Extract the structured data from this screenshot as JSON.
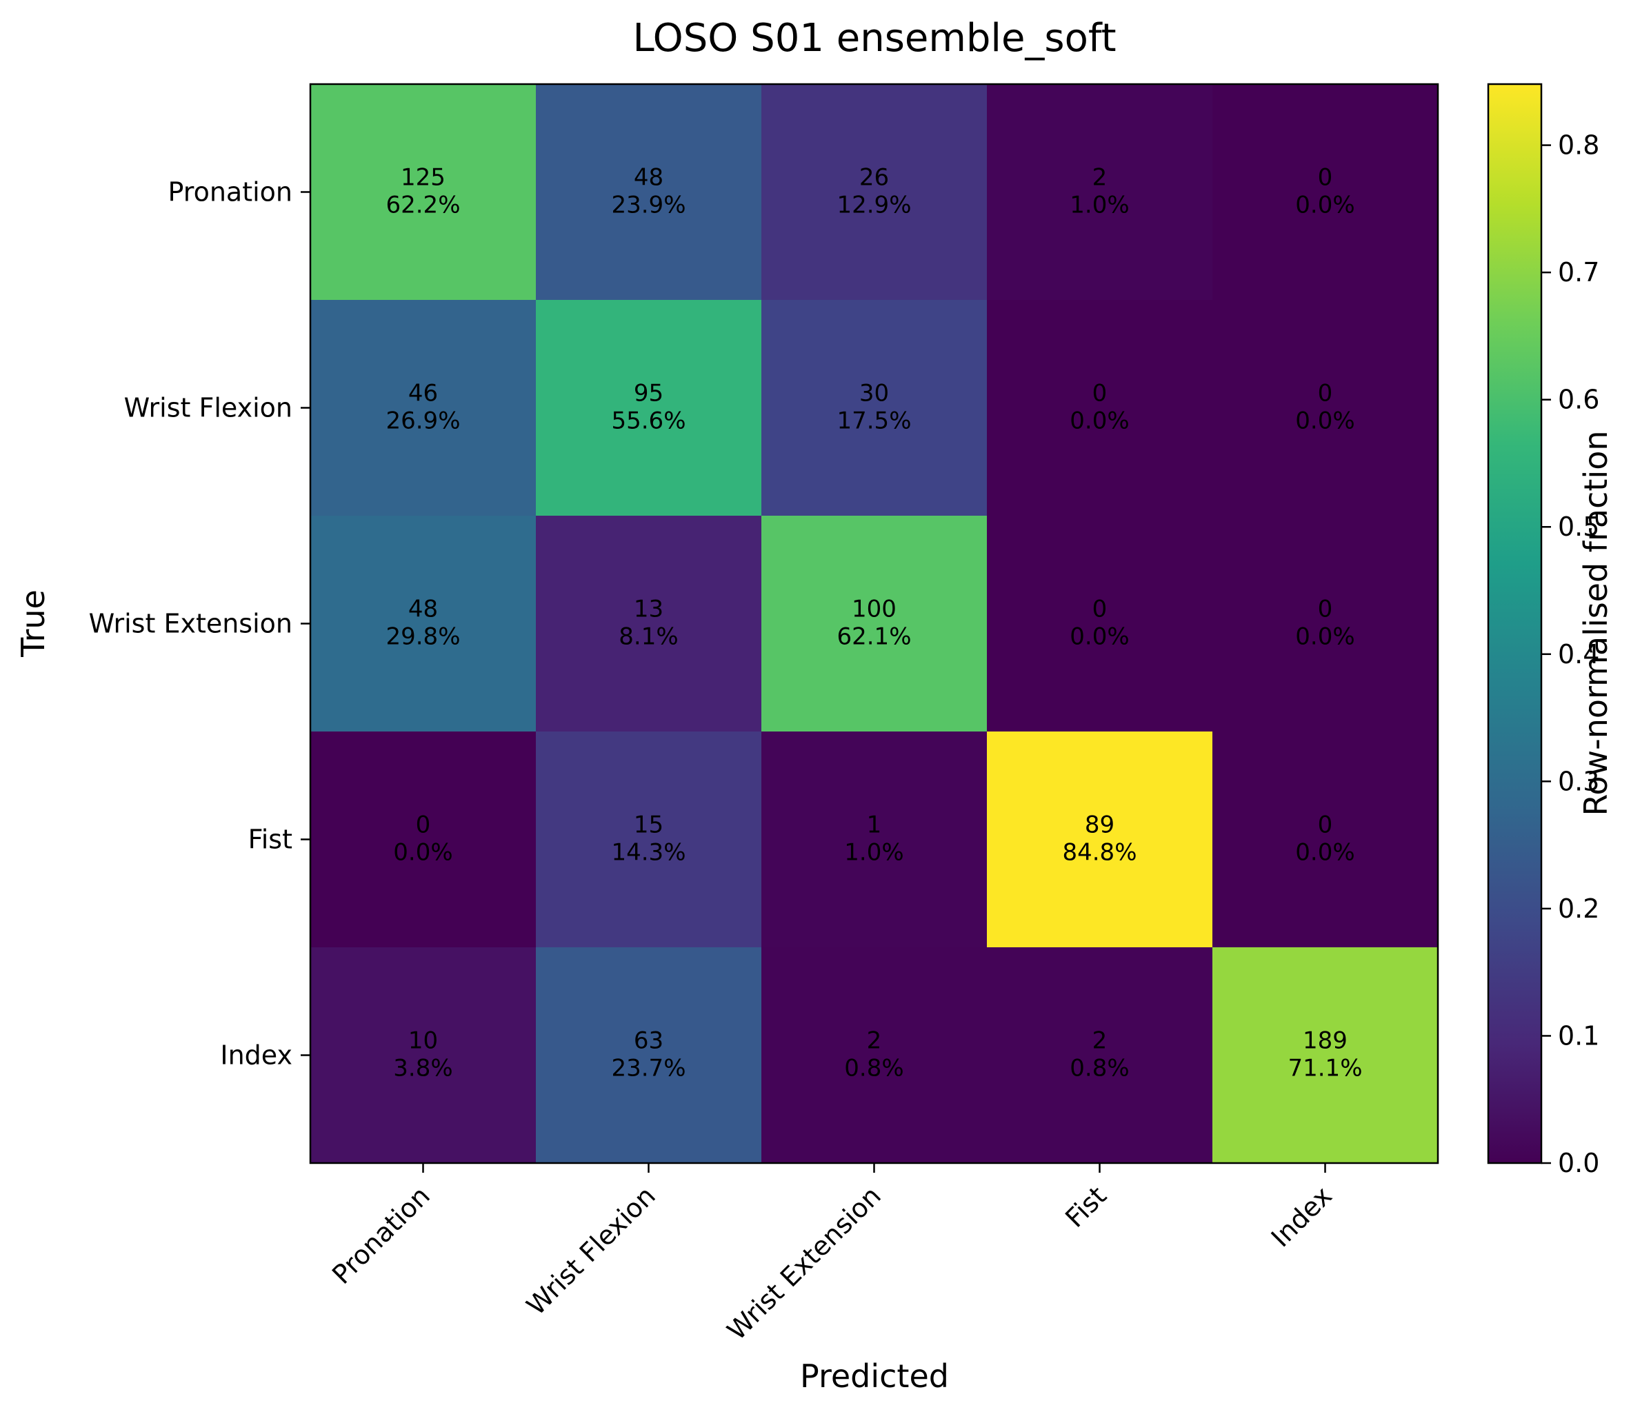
{
  "chart_data": {
    "type": "heatmap",
    "title": "LOSO S01 ensemble_soft",
    "xlabel": "Predicted",
    "ylabel": "True",
    "x_categories": [
      "Pronation",
      "Wrist Flexion",
      "Wrist Extension",
      "Fist",
      "Index"
    ],
    "y_categories": [
      "Pronation",
      "Wrist Flexion",
      "Wrist Extension",
      "Fist",
      "Index"
    ],
    "counts": [
      [
        125,
        48,
        26,
        2,
        0
      ],
      [
        46,
        95,
        30,
        0,
        0
      ],
      [
        48,
        13,
        100,
        0,
        0
      ],
      [
        0,
        15,
        1,
        89,
        0
      ],
      [
        10,
        63,
        2,
        2,
        189
      ]
    ],
    "percent_labels": [
      [
        "62.2%",
        "23.9%",
        "12.9%",
        "1.0%",
        "0.0%"
      ],
      [
        "26.9%",
        "55.6%",
        "17.5%",
        "0.0%",
        "0.0%"
      ],
      [
        "29.8%",
        "8.1%",
        "62.1%",
        "0.0%",
        "0.0%"
      ],
      [
        "0.0%",
        "14.3%",
        "1.0%",
        "84.8%",
        "0.0%"
      ],
      [
        "3.8%",
        "23.7%",
        "0.8%",
        "0.8%",
        "71.1%"
      ]
    ],
    "fractions": [
      [
        0.622,
        0.239,
        0.129,
        0.01,
        0.0
      ],
      [
        0.269,
        0.556,
        0.175,
        0.0,
        0.0
      ],
      [
        0.298,
        0.081,
        0.621,
        0.0,
        0.0
      ],
      [
        0.0,
        0.143,
        0.01,
        0.848,
        0.0
      ],
      [
        0.038,
        0.237,
        0.008,
        0.008,
        0.711
      ]
    ],
    "colormap": "viridis",
    "colorbar": {
      "label": "Row-normalised fraction",
      "range": [
        0.0,
        0.848
      ],
      "ticks": [
        "0.0",
        "0.1",
        "0.2",
        "0.3",
        "0.4",
        "0.5",
        "0.6",
        "0.7",
        "0.8"
      ]
    },
    "text_color": "#000000"
  }
}
